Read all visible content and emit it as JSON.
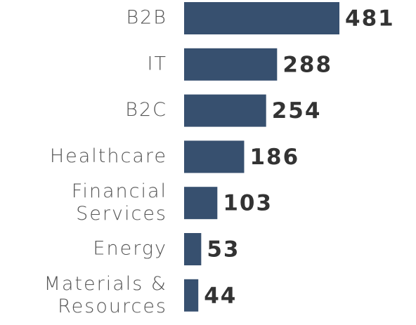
{
  "chart_data": {
    "type": "bar",
    "orientation": "horizontal",
    "categories": [
      "B2B",
      "IT",
      "B2C",
      "Healthcare",
      "Financial Services",
      "Energy",
      "Materials & Resources"
    ],
    "values": [
      481,
      288,
      254,
      186,
      103,
      53,
      44
    ],
    "color": "#37506f"
  }
}
